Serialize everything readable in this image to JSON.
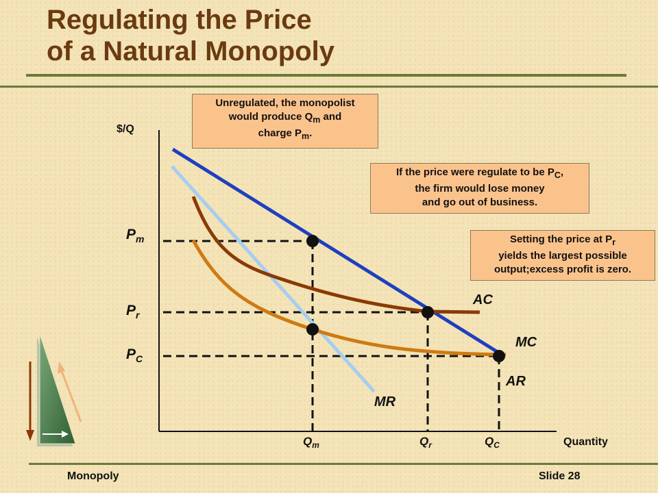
{
  "title": [
    "Regulating the Price",
    "of a Natural Monopoly"
  ],
  "callouts": {
    "unregulated": [
      "Unregulated, the monopolist",
      "would produce Q",
      "m",
      " and",
      "charge P",
      "m",
      "."
    ],
    "regulate_pc": [
      "If the price were regulate to be P",
      "C",
      ",",
      "the firm would lose money",
      "and go out of business."
    ],
    "setting_pr": [
      "Setting the price at P",
      "r",
      "yields the largest possible",
      "output;excess profit is zero."
    ]
  },
  "axes": {
    "y_label": "$/Q",
    "x_label": "Quantity"
  },
  "price_labels": {
    "pm": [
      "P",
      "m"
    ],
    "pr": [
      "P",
      "r"
    ],
    "pc": [
      "P",
      "C"
    ]
  },
  "quantity_labels": {
    "qm": [
      "Q",
      "m"
    ],
    "qr": [
      "Q",
      "r"
    ],
    "qc": [
      "Q",
      "C"
    ]
  },
  "curve_labels": {
    "ac": "AC",
    "mc": "MC",
    "ar": "AR",
    "mr": "MR"
  },
  "colors": {
    "ar": "#1f3fbf",
    "mr": "#a6cdf0",
    "ac": "#8a3a06",
    "mc": "#cf7a12",
    "title": "#6b3a10",
    "callout": "#fbc38c"
  },
  "footer": {
    "left": "Monopoly",
    "right": "Slide 28"
  }
}
